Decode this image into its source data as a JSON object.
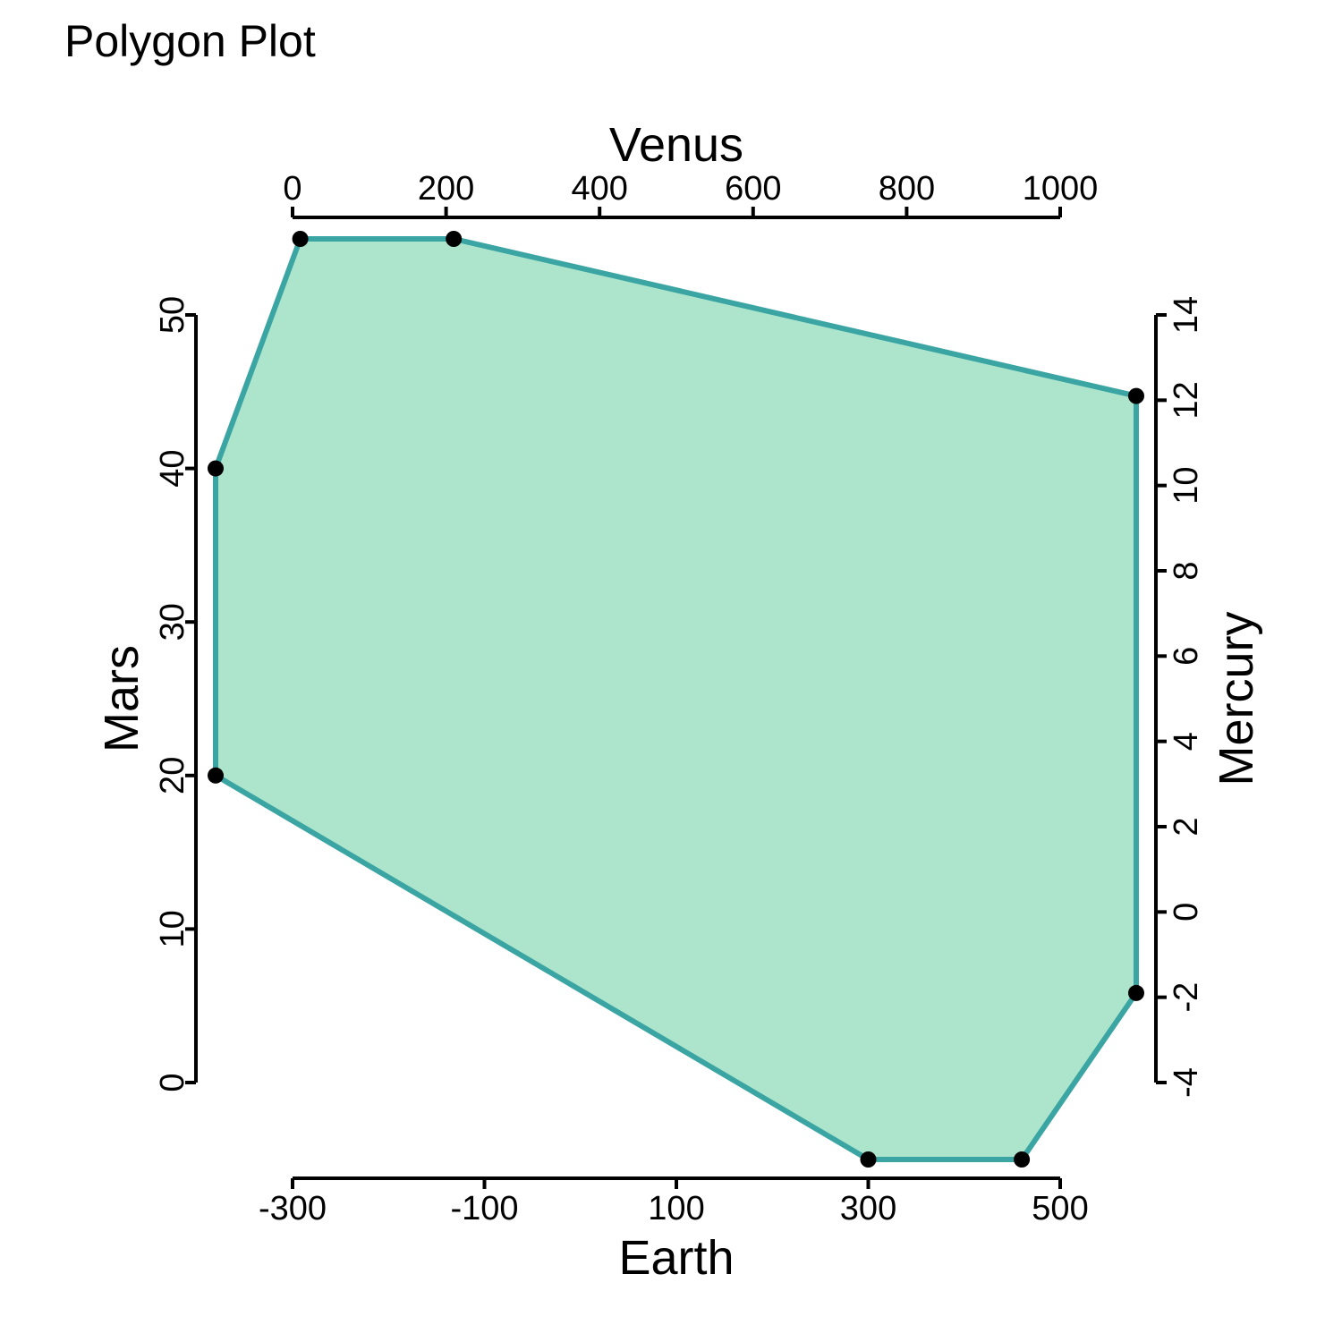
{
  "chart_data": {
    "type": "polygon",
    "title": "Polygon Plot",
    "axes": {
      "bottom": {
        "label": "Earth",
        "ticks": [
          "-300",
          "-100",
          "100",
          "300",
          "500"
        ],
        "range": [
          -300,
          500
        ]
      },
      "top": {
        "label": "Venus",
        "ticks": [
          "0",
          "200",
          "400",
          "600",
          "800",
          "1000"
        ],
        "range": [
          0,
          1000
        ]
      },
      "left": {
        "label": "Mars",
        "ticks": [
          "0",
          "10",
          "20",
          "30",
          "40",
          "50"
        ],
        "range": [
          0,
          50
        ]
      },
      "right": {
        "label": "Mercury",
        "ticks": [
          "-4",
          "-2",
          "0",
          "2",
          "4",
          "6",
          "8",
          "10",
          "12",
          "14"
        ],
        "range": [
          -4,
          14
        ]
      }
    },
    "vertices": [
      {
        "axis": "top",
        "value": 10
      },
      {
        "axis": "top",
        "value": 210
      },
      {
        "axis": "right",
        "value": 12.1
      },
      {
        "axis": "right",
        "value": -1.9
      },
      {
        "axis": "bottom",
        "value": 460
      },
      {
        "axis": "bottom",
        "value": 300
      },
      {
        "axis": "left",
        "value": 20
      },
      {
        "axis": "left",
        "value": 40
      }
    ],
    "colors": {
      "fill": "#ade5cc",
      "stroke": "#3aa5a2",
      "vertex": "#000000"
    }
  }
}
